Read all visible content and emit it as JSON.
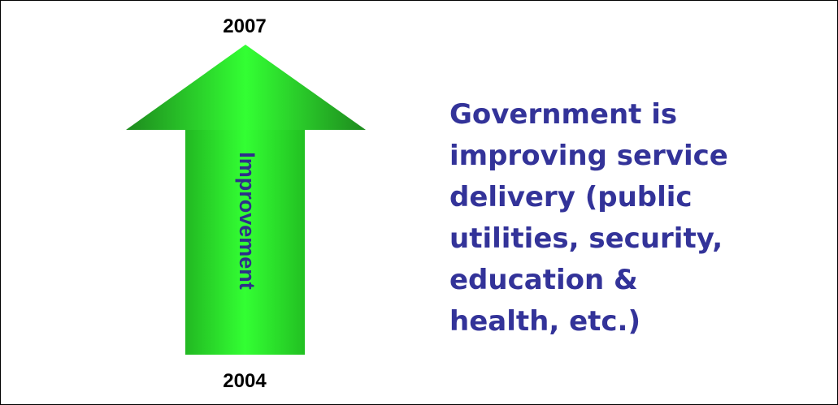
{
  "top_label": "2007",
  "bottom_label": "2004",
  "arrow_label": "Improvement",
  "statement_lines": [
    "Government is",
    "improving service",
    "delivery (public",
    "utilities, security,",
    "education &",
    "health, etc.)"
  ]
}
